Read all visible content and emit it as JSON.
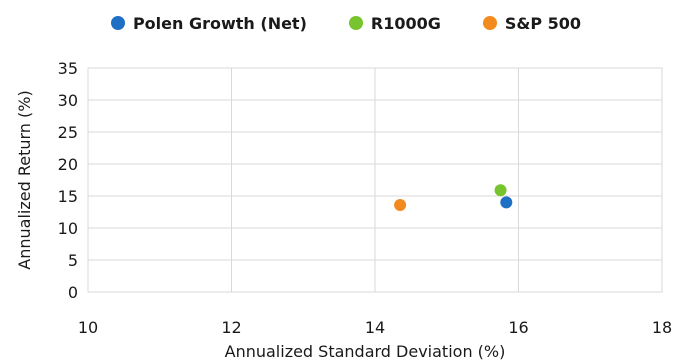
{
  "chart_data": {
    "type": "scatter",
    "title": "",
    "xlabel": "Annualized Standard Deviation (%)",
    "ylabel": "Annualized Return (%)",
    "xlim": [
      10,
      18
    ],
    "ylim": [
      0,
      35
    ],
    "xticks": [
      "10",
      "12",
      "14",
      "16",
      "18"
    ],
    "yticks": [
      "0",
      "5",
      "10",
      "15",
      "20",
      "25",
      "30",
      "35"
    ],
    "grid": true,
    "legend_position": "top-center",
    "series": [
      {
        "name": "Polen Growth (Net)",
        "color": "#1f6fc4",
        "points": [
          {
            "x": 15.83,
            "y": 14.0
          }
        ]
      },
      {
        "name": "R1000G",
        "color": "#77c42e",
        "points": [
          {
            "x": 15.75,
            "y": 15.9
          }
        ]
      },
      {
        "name": "S&P 500",
        "color": "#f28a1e",
        "points": [
          {
            "x": 14.35,
            "y": 13.6
          }
        ]
      }
    ]
  }
}
